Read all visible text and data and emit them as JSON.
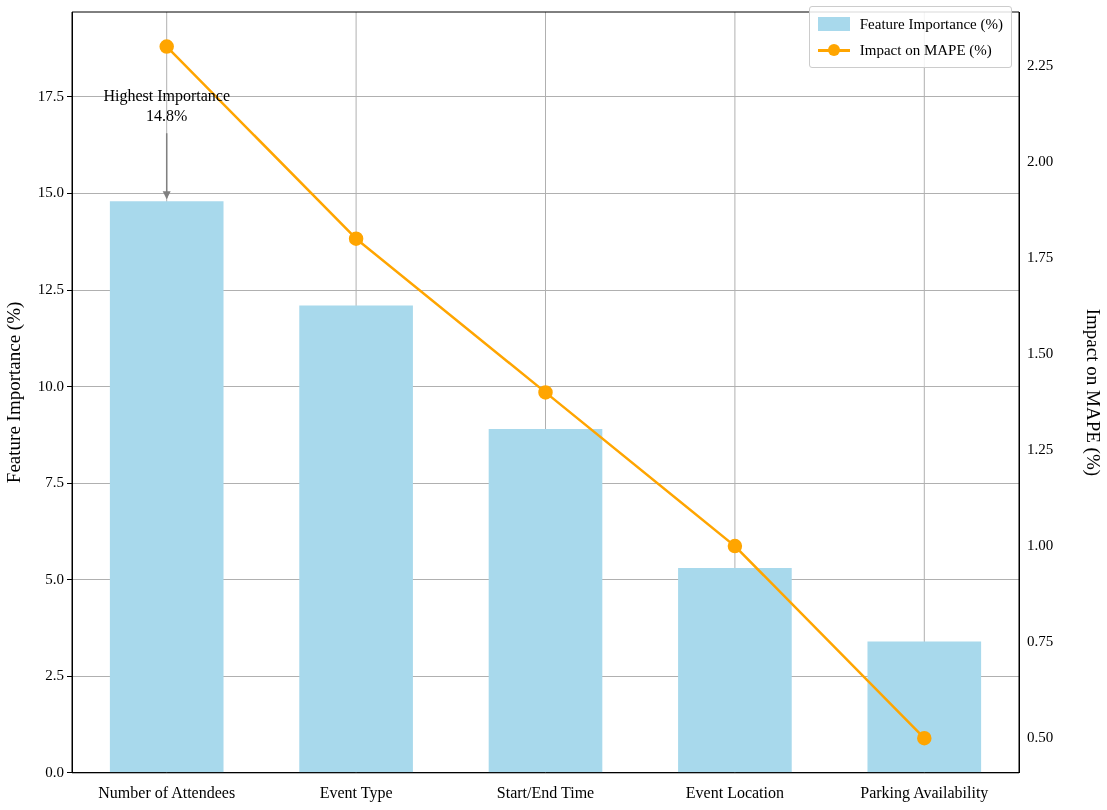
{
  "chart_data": {
    "type": "bar",
    "categories": [
      "Number of Attendees",
      "Event Type",
      "Start/End Time",
      "Event Location",
      "Parking Availability"
    ],
    "series": [
      {
        "name": "Feature Importance (%)",
        "color": "#a8d9ec",
        "values": [
          14.8,
          12.1,
          8.9,
          5.3,
          3.4
        ]
      },
      {
        "name": "Impact on MAPE (%)",
        "type": "line",
        "axis": "y2",
        "color": "#ffa500",
        "marker": "circle",
        "values": [
          2.3,
          1.8,
          1.4,
          1.0,
          0.5
        ]
      }
    ],
    "ylabel": "Feature Importance (%)",
    "y2label": "Impact on MAPE (%)",
    "ylim": [
      0,
      19.7
    ],
    "yticks": [
      {
        "value": 0,
        "label": "0.0"
      },
      {
        "value": 2.5,
        "label": "2.5"
      },
      {
        "value": 5,
        "label": "5.0"
      },
      {
        "value": 7.5,
        "label": "7.5"
      },
      {
        "value": 10,
        "label": "10.0"
      },
      {
        "value": 12.5,
        "label": "12.5"
      },
      {
        "value": 15,
        "label": "15.0"
      },
      {
        "value": 17.5,
        "label": "17.5"
      }
    ],
    "y2lim": [
      0.41,
      2.39
    ],
    "y2ticks": [
      {
        "value": 0.5,
        "label": "0.50"
      },
      {
        "value": 0.75,
        "label": "0.75"
      },
      {
        "value": 1,
        "label": "1.00"
      },
      {
        "value": 1.25,
        "label": "1.25"
      },
      {
        "value": 1.5,
        "label": "1.50"
      },
      {
        "value": 1.75,
        "label": "1.75"
      },
      {
        "value": 2,
        "label": "2.00"
      },
      {
        "value": 2.25,
        "label": "2.25"
      }
    ],
    "annotations": [
      {
        "text": "Highest Importance\n14.8%",
        "x": "Number of Attendees",
        "y": 14.8
      }
    ],
    "grid": true,
    "legend": "top right"
  }
}
